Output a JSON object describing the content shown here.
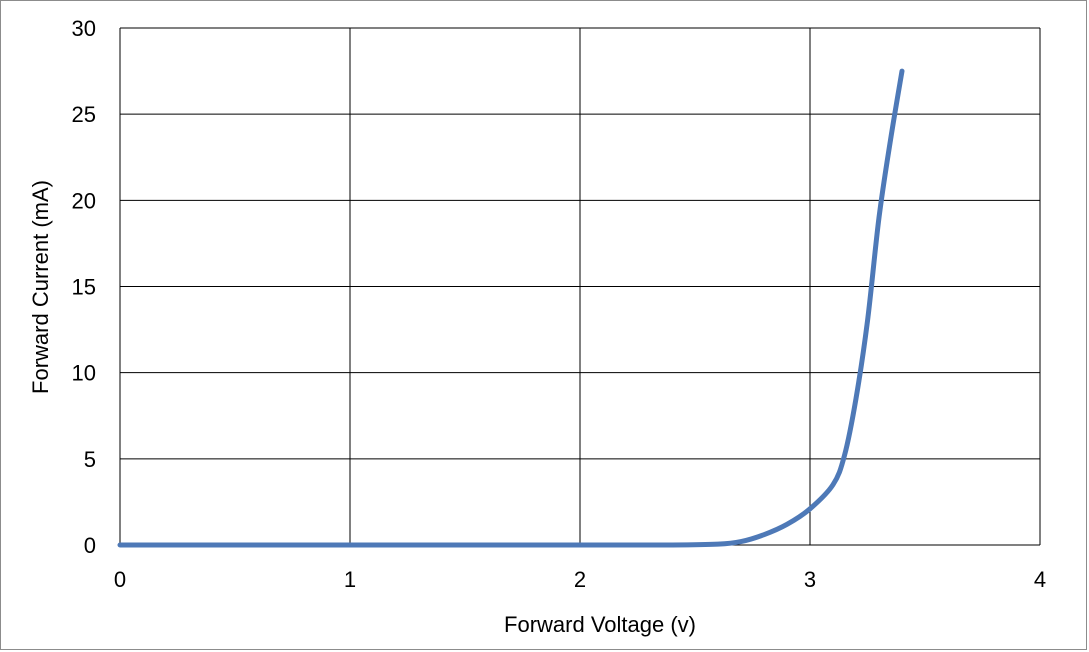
{
  "chart_data": {
    "type": "line",
    "title": "",
    "xlabel": "Forward Voltage (v)",
    "ylabel": "Forward Current (mA)",
    "xlim": [
      0,
      4
    ],
    "ylim": [
      0,
      30
    ],
    "xticks": [
      0,
      1,
      2,
      3,
      4
    ],
    "yticks": [
      0,
      5,
      10,
      15,
      20,
      25,
      30
    ],
    "grid": true,
    "legend": "none",
    "colors": {
      "series": "#4e79b7",
      "grid": "#000000"
    },
    "series": [
      {
        "x": [
          0,
          0.5,
          1.0,
          1.5,
          2.0,
          2.4,
          2.6,
          2.7,
          2.8,
          2.9,
          3.0,
          3.1,
          3.15,
          3.2,
          3.25,
          3.3,
          3.35,
          3.4
        ],
        "values": [
          0,
          0,
          0,
          0,
          0,
          0,
          0.05,
          0.2,
          0.6,
          1.2,
          2.1,
          3.5,
          5.2,
          8.5,
          13,
          19,
          23.5,
          27.5
        ]
      }
    ]
  }
}
